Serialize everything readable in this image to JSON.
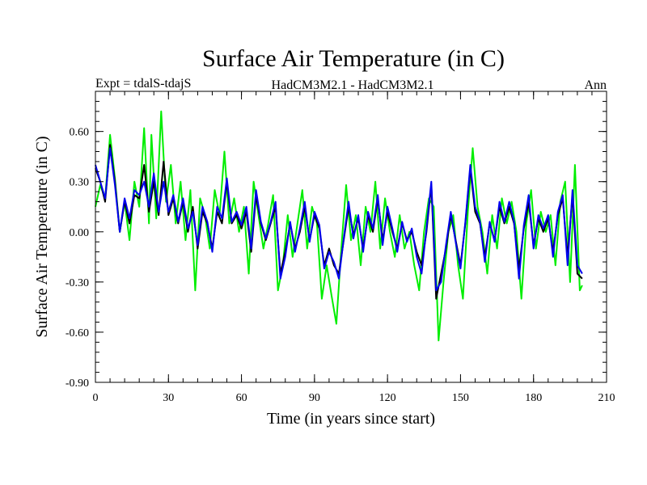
{
  "chart_data": {
    "type": "line",
    "title": "Surface Air Temperature (in C)",
    "subtitle_left": "Expt = tdalS-tdajS",
    "subtitle_center": "HadCM3M2.1 - HadCM3M2.1",
    "subtitle_right": "Ann",
    "xlabel": "Time (in years since start)",
    "ylabel": "Surface Air Temperature (in C)",
    "xlim": [
      0,
      210
    ],
    "ylim": [
      -0.9,
      0.84
    ],
    "xticks": [
      0,
      30,
      60,
      90,
      120,
      150,
      180,
      210
    ],
    "xtick_labels": [
      "0",
      "30",
      "60",
      "90",
      "120",
      "150",
      "180",
      "210"
    ],
    "yticks": [
      -0.9,
      -0.6,
      -0.3,
      0.0,
      0.3,
      0.6
    ],
    "ytick_labels": [
      "-0.90",
      "-0.60",
      "-0.30",
      "0.00",
      "0.30",
      "0.60"
    ],
    "series": [
      {
        "name": "green",
        "color": "#00ee00",
        "points": [
          [
            0,
            0.15
          ],
          [
            2,
            0.28
          ],
          [
            4,
            0.2
          ],
          [
            6,
            0.58
          ],
          [
            8,
            0.32
          ],
          [
            10,
            0.0
          ],
          [
            12,
            0.18
          ],
          [
            14,
            -0.05
          ],
          [
            16,
            0.3
          ],
          [
            18,
            0.15
          ],
          [
            20,
            0.62
          ],
          [
            22,
            0.05
          ],
          [
            23,
            0.58
          ],
          [
            25,
            0.08
          ],
          [
            27,
            0.72
          ],
          [
            29,
            0.18
          ],
          [
            31,
            0.4
          ],
          [
            33,
            0.05
          ],
          [
            35,
            0.3
          ],
          [
            37,
            -0.05
          ],
          [
            39,
            0.25
          ],
          [
            41,
            -0.35
          ],
          [
            43,
            0.2
          ],
          [
            45,
            0.1
          ],
          [
            47,
            -0.1
          ],
          [
            49,
            0.25
          ],
          [
            51,
            0.1
          ],
          [
            53,
            0.48
          ],
          [
            55,
            0.05
          ],
          [
            57,
            0.2
          ],
          [
            59,
            0.0
          ],
          [
            61,
            0.15
          ],
          [
            63,
            -0.25
          ],
          [
            65,
            0.3
          ],
          [
            67,
            0.1
          ],
          [
            69,
            -0.1
          ],
          [
            71,
            0.05
          ],
          [
            73,
            0.22
          ],
          [
            75,
            -0.35
          ],
          [
            77,
            -0.2
          ],
          [
            79,
            0.1
          ],
          [
            81,
            -0.15
          ],
          [
            83,
            0.05
          ],
          [
            85,
            0.25
          ],
          [
            87,
            -0.1
          ],
          [
            89,
            0.15
          ],
          [
            91,
            0.05
          ],
          [
            93,
            -0.4
          ],
          [
            95,
            -0.2
          ],
          [
            97,
            -0.38
          ],
          [
            99,
            -0.55
          ],
          [
            101,
            -0.1
          ],
          [
            103,
            0.28
          ],
          [
            105,
            -0.05
          ],
          [
            107,
            0.1
          ],
          [
            109,
            -0.2
          ],
          [
            111,
            0.15
          ],
          [
            113,
            0.0
          ],
          [
            115,
            0.3
          ],
          [
            117,
            -0.1
          ],
          [
            119,
            0.2
          ],
          [
            121,
            0.0
          ],
          [
            123,
            -0.15
          ],
          [
            125,
            0.1
          ],
          [
            127,
            -0.1
          ],
          [
            129,
            0.0
          ],
          [
            131,
            -0.2
          ],
          [
            133,
            -0.35
          ],
          [
            135,
            0.0
          ],
          [
            137,
            0.2
          ],
          [
            139,
            0.15
          ],
          [
            141,
            -0.65
          ],
          [
            143,
            -0.3
          ],
          [
            145,
            0.0
          ],
          [
            147,
            0.1
          ],
          [
            149,
            -0.2
          ],
          [
            151,
            -0.4
          ],
          [
            153,
            0.12
          ],
          [
            155,
            0.5
          ],
          [
            157,
            0.15
          ],
          [
            159,
            0.0
          ],
          [
            161,
            -0.25
          ],
          [
            163,
            0.1
          ],
          [
            165,
            -0.1
          ],
          [
            167,
            0.2
          ],
          [
            169,
            0.05
          ],
          [
            171,
            0.18
          ],
          [
            173,
            0.0
          ],
          [
            175,
            -0.4
          ],
          [
            177,
            0.05
          ],
          [
            179,
            0.25
          ],
          [
            181,
            -0.1
          ],
          [
            183,
            0.12
          ],
          [
            185,
            0.0
          ],
          [
            187,
            0.1
          ],
          [
            189,
            -0.2
          ],
          [
            191,
            0.18
          ],
          [
            193,
            0.3
          ],
          [
            195,
            -0.3
          ],
          [
            197,
            0.4
          ],
          [
            199,
            -0.35
          ],
          [
            200,
            -0.32
          ]
        ]
      },
      {
        "name": "black",
        "color": "#000000",
        "points": [
          [
            0,
            0.38
          ],
          [
            2,
            0.3
          ],
          [
            4,
            0.18
          ],
          [
            6,
            0.52
          ],
          [
            8,
            0.3
          ],
          [
            10,
            0.0
          ],
          [
            12,
            0.18
          ],
          [
            14,
            0.05
          ],
          [
            16,
            0.22
          ],
          [
            18,
            0.2
          ],
          [
            20,
            0.4
          ],
          [
            22,
            0.12
          ],
          [
            24,
            0.3
          ],
          [
            26,
            0.1
          ],
          [
            28,
            0.42
          ],
          [
            30,
            0.1
          ],
          [
            32,
            0.2
          ],
          [
            34,
            0.05
          ],
          [
            36,
            0.18
          ],
          [
            38,
            0.0
          ],
          [
            40,
            0.15
          ],
          [
            42,
            -0.1
          ],
          [
            44,
            0.12
          ],
          [
            46,
            0.05
          ],
          [
            48,
            -0.1
          ],
          [
            50,
            0.12
          ],
          [
            52,
            0.05
          ],
          [
            54,
            0.3
          ],
          [
            56,
            0.05
          ],
          [
            58,
            0.1
          ],
          [
            60,
            0.02
          ],
          [
            62,
            0.12
          ],
          [
            64,
            -0.12
          ],
          [
            66,
            0.22
          ],
          [
            68,
            0.05
          ],
          [
            70,
            -0.05
          ],
          [
            72,
            0.05
          ],
          [
            74,
            0.15
          ],
          [
            76,
            -0.25
          ],
          [
            78,
            -0.12
          ],
          [
            80,
            0.05
          ],
          [
            82,
            -0.1
          ],
          [
            84,
            0.0
          ],
          [
            86,
            0.15
          ],
          [
            88,
            -0.05
          ],
          [
            90,
            0.1
          ],
          [
            92,
            0.02
          ],
          [
            94,
            -0.2
          ],
          [
            96,
            -0.1
          ],
          [
            98,
            -0.2
          ],
          [
            100,
            -0.25
          ],
          [
            102,
            -0.05
          ],
          [
            104,
            0.15
          ],
          [
            106,
            -0.02
          ],
          [
            108,
            0.08
          ],
          [
            110,
            -0.1
          ],
          [
            112,
            0.1
          ],
          [
            114,
            0.0
          ],
          [
            116,
            0.2
          ],
          [
            118,
            -0.05
          ],
          [
            120,
            0.12
          ],
          [
            122,
            0.0
          ],
          [
            124,
            -0.1
          ],
          [
            126,
            0.05
          ],
          [
            128,
            -0.05
          ],
          [
            130,
            0.0
          ],
          [
            132,
            -0.12
          ],
          [
            134,
            -0.2
          ],
          [
            136,
            0.0
          ],
          [
            138,
            0.28
          ],
          [
            140,
            -0.4
          ],
          [
            142,
            -0.25
          ],
          [
            144,
            -0.1
          ],
          [
            146,
            0.1
          ],
          [
            148,
            -0.05
          ],
          [
            150,
            -0.2
          ],
          [
            152,
            0.05
          ],
          [
            154,
            0.38
          ],
          [
            156,
            0.12
          ],
          [
            158,
            0.05
          ],
          [
            160,
            -0.15
          ],
          [
            162,
            0.05
          ],
          [
            164,
            -0.05
          ],
          [
            166,
            0.15
          ],
          [
            168,
            0.05
          ],
          [
            170,
            0.15
          ],
          [
            172,
            0.05
          ],
          [
            174,
            -0.22
          ],
          [
            176,
            0.02
          ],
          [
            178,
            0.18
          ],
          [
            180,
            -0.08
          ],
          [
            182,
            0.08
          ],
          [
            184,
            0.0
          ],
          [
            186,
            0.08
          ],
          [
            188,
            -0.12
          ],
          [
            190,
            0.1
          ],
          [
            192,
            0.2
          ],
          [
            194,
            -0.15
          ],
          [
            196,
            0.22
          ],
          [
            198,
            -0.25
          ],
          [
            200,
            -0.28
          ]
        ]
      },
      {
        "name": "blue",
        "color": "#0000ee",
        "points": [
          [
            0,
            0.4
          ],
          [
            2,
            0.3
          ],
          [
            4,
            0.2
          ],
          [
            6,
            0.5
          ],
          [
            8,
            0.28
          ],
          [
            10,
            0.0
          ],
          [
            12,
            0.2
          ],
          [
            14,
            0.08
          ],
          [
            16,
            0.25
          ],
          [
            18,
            0.22
          ],
          [
            20,
            0.3
          ],
          [
            22,
            0.15
          ],
          [
            24,
            0.35
          ],
          [
            26,
            0.12
          ],
          [
            28,
            0.3
          ],
          [
            30,
            0.12
          ],
          [
            32,
            0.22
          ],
          [
            34,
            0.06
          ],
          [
            36,
            0.2
          ],
          [
            38,
            0.02
          ],
          [
            40,
            0.12
          ],
          [
            42,
            -0.08
          ],
          [
            44,
            0.15
          ],
          [
            46,
            0.06
          ],
          [
            48,
            -0.12
          ],
          [
            50,
            0.15
          ],
          [
            52,
            0.08
          ],
          [
            54,
            0.32
          ],
          [
            56,
            0.06
          ],
          [
            58,
            0.12
          ],
          [
            60,
            0.04
          ],
          [
            62,
            0.15
          ],
          [
            64,
            -0.1
          ],
          [
            66,
            0.25
          ],
          [
            68,
            0.06
          ],
          [
            70,
            -0.04
          ],
          [
            72,
            0.06
          ],
          [
            74,
            0.18
          ],
          [
            76,
            -0.28
          ],
          [
            78,
            -0.15
          ],
          [
            80,
            0.06
          ],
          [
            82,
            -0.12
          ],
          [
            84,
            0.02
          ],
          [
            86,
            0.18
          ],
          [
            88,
            -0.06
          ],
          [
            90,
            0.12
          ],
          [
            92,
            0.04
          ],
          [
            94,
            -0.22
          ],
          [
            96,
            -0.12
          ],
          [
            98,
            -0.18
          ],
          [
            100,
            -0.28
          ],
          [
            102,
            -0.04
          ],
          [
            104,
            0.18
          ],
          [
            106,
            -0.04
          ],
          [
            108,
            0.1
          ],
          [
            110,
            -0.12
          ],
          [
            112,
            0.12
          ],
          [
            114,
            0.02
          ],
          [
            116,
            0.22
          ],
          [
            118,
            -0.08
          ],
          [
            120,
            0.15
          ],
          [
            122,
            0.02
          ],
          [
            124,
            -0.12
          ],
          [
            126,
            0.06
          ],
          [
            128,
            -0.06
          ],
          [
            130,
            0.02
          ],
          [
            132,
            -0.15
          ],
          [
            134,
            -0.25
          ],
          [
            136,
            0.02
          ],
          [
            138,
            0.3
          ],
          [
            140,
            -0.35
          ],
          [
            142,
            -0.3
          ],
          [
            144,
            -0.08
          ],
          [
            146,
            0.12
          ],
          [
            148,
            -0.06
          ],
          [
            150,
            -0.22
          ],
          [
            152,
            0.06
          ],
          [
            154,
            0.4
          ],
          [
            156,
            0.15
          ],
          [
            158,
            0.06
          ],
          [
            160,
            -0.18
          ],
          [
            162,
            0.06
          ],
          [
            164,
            -0.06
          ],
          [
            166,
            0.18
          ],
          [
            168,
            0.06
          ],
          [
            170,
            0.18
          ],
          [
            172,
            0.06
          ],
          [
            174,
            -0.28
          ],
          [
            176,
            0.04
          ],
          [
            178,
            0.22
          ],
          [
            180,
            -0.1
          ],
          [
            182,
            0.1
          ],
          [
            184,
            0.02
          ],
          [
            186,
            0.1
          ],
          [
            188,
            -0.15
          ],
          [
            190,
            0.12
          ],
          [
            192,
            0.22
          ],
          [
            194,
            -0.2
          ],
          [
            196,
            0.25
          ],
          [
            198,
            -0.2
          ],
          [
            200,
            -0.25
          ]
        ]
      }
    ]
  }
}
